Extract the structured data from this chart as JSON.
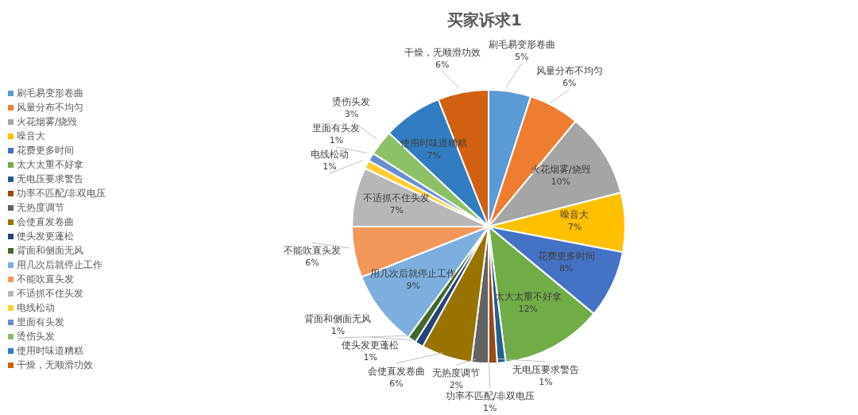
{
  "chart_data": {
    "type": "pie",
    "title": "买家诉求1",
    "categories": [
      "刷毛易变形卷曲",
      "风量分布不均匀",
      "火花烟雾/烧毁",
      "噪音大",
      "花费更多时间",
      "太大太重不好拿",
      "无电压要求警告",
      "功率不匹配/非双电压",
      "无热度调节",
      "会使直发卷曲",
      "使头发更蓬松",
      "背面和侧面无风",
      "用几次后就停止工作",
      "不能吹直头发",
      "不适抓不住头发",
      "电线松动",
      "里面有头发",
      "烫伤头发",
      "使用时味道糟糕",
      "干燥，无顺滑功效"
    ],
    "values": [
      5,
      6,
      10,
      7,
      8,
      12,
      1,
      1,
      2,
      6,
      1,
      1,
      9,
      6,
      7,
      1,
      1,
      3,
      7,
      6
    ],
    "value_labels": [
      "5%",
      "6%",
      "10%",
      "7%",
      "8%",
      "12%",
      "1%",
      "1%",
      "2%",
      "6%",
      "1%",
      "1%",
      "9%",
      "6%",
      "7%",
      "1%",
      "1%",
      "3%",
      "7%",
      "6%"
    ],
    "colors": [
      "#5b9bd5",
      "#ed7d31",
      "#a5a5a5",
      "#ffc000",
      "#4472c4",
      "#70ad47",
      "#255e91",
      "#9e480e",
      "#636363",
      "#997300",
      "#264478",
      "#43682b",
      "#7cafdd",
      "#f1975a",
      "#b7b7b7",
      "#ffcd33",
      "#698ed0",
      "#8cc168",
      "#327dc2",
      "#d26012"
    ],
    "legend": "left"
  }
}
